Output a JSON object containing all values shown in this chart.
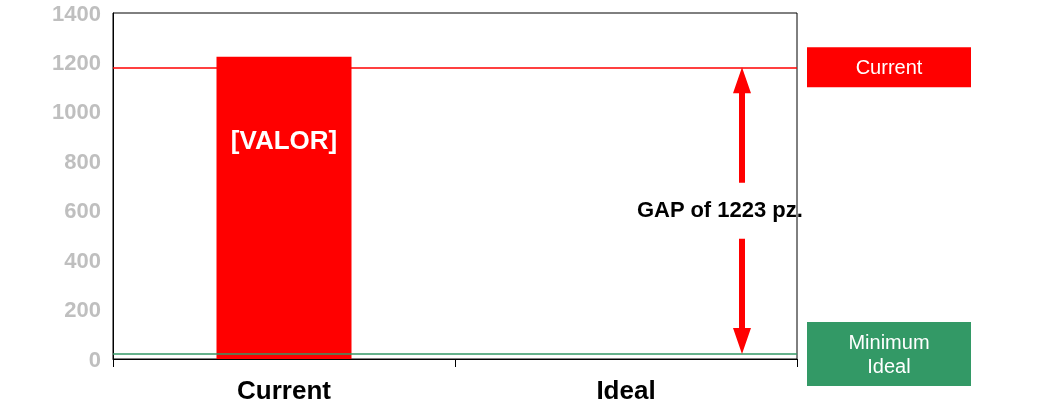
{
  "chart_data": {
    "type": "bar",
    "categories": [
      "Current",
      "Ideal"
    ],
    "values": [
      1223,
      0
    ],
    "value_labels": [
      "[VALOR]",
      null
    ],
    "color": "#ff0000",
    "ylim": [
      0,
      1400
    ],
    "yticks": [
      0,
      200,
      400,
      600,
      800,
      1000,
      1200,
      1400
    ],
    "grid": false,
    "ref_lines": [
      {
        "axis": "y",
        "value": 1180,
        "label": "Current",
        "color": "#ff0000"
      },
      {
        "axis": "y",
        "value": 20,
        "label": "Minimum\nIdeal",
        "color": "#339966"
      }
    ],
    "annotations": [
      "GAP of 1223 pz."
    ]
  }
}
